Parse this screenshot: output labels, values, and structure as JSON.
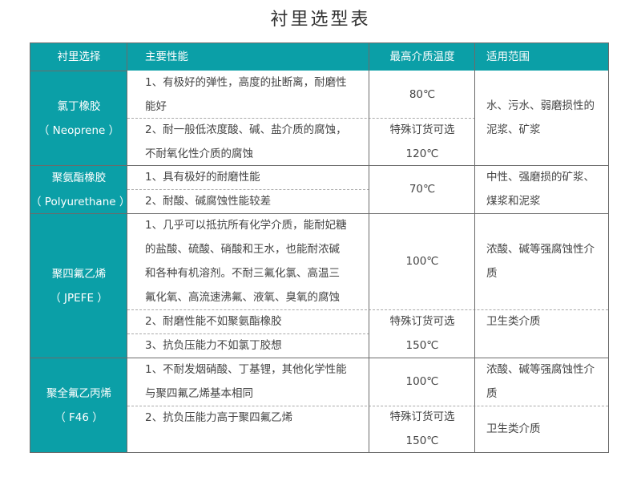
{
  "title": "衬里选型表",
  "headers": [
    "衬里选择",
    "主要性能",
    "最高介质温度",
    "适用范围"
  ],
  "rows": [
    {
      "name": "氯丁橡胶\n（ Neoprene ）",
      "perf": [
        "1、有极好的弹性，高度的扯断离，耐磨性\n能好",
        "2、耐一般低浓度酸、碱、盐介质的腐蚀，\n不耐氧化性介质的腐蚀"
      ],
      "temp": [
        "80℃",
        "特殊订货可选\n120℃"
      ],
      "scope": [
        "水、污水、弱磨损性的\n泥浆、矿浆"
      ]
    },
    {
      "name": "聚氨酯橡胶\n（ Polyurethane ）",
      "perf": [
        "1、具有极好的耐磨性能",
        "2、耐酸、碱腐蚀性能较差"
      ],
      "temp": [
        "70℃"
      ],
      "scope": [
        "中性、强磨损的矿浆、\n煤浆和泥浆"
      ]
    },
    {
      "name": "聚四氟乙烯\n（ JPEFE ）",
      "perf": [
        "1、几乎可以抵抗所有化学介质，能耐妃糖\n的盐酸、硫酸、硝酸和王水，也能耐浓碱\n和各种有机溶剂。不耐三氟化氯、高温三\n氟化氧、高流速沸氟、液氧、臭氧的腐蚀",
        "2、耐磨性能不如聚氨酯橡胶",
        "3、抗负压能力不如氯丁胶想"
      ],
      "temp": [
        "100℃",
        "特殊订货可选\n150℃"
      ],
      "scope": [
        "浓酸、碱等强腐蚀性介\n质",
        "卫生类介质"
      ]
    },
    {
      "name": "聚全氟乙丙烯\n（ F46 ）",
      "perf": [
        "1、不耐发烟硝酸、丁基锂，其他化学性能\n与聚四氟乙烯基本相同",
        "2、抗负压能力高于聚四氟乙烯"
      ],
      "temp": [
        "100℃",
        "特殊订货可选\n150℃"
      ],
      "scope": [
        "浓酸、碱等强腐蚀性介\n质",
        "卫生类介质"
      ]
    }
  ],
  "colors": {
    "header_bg": "#0b9fa7",
    "border": "#6b6b6b"
  }
}
